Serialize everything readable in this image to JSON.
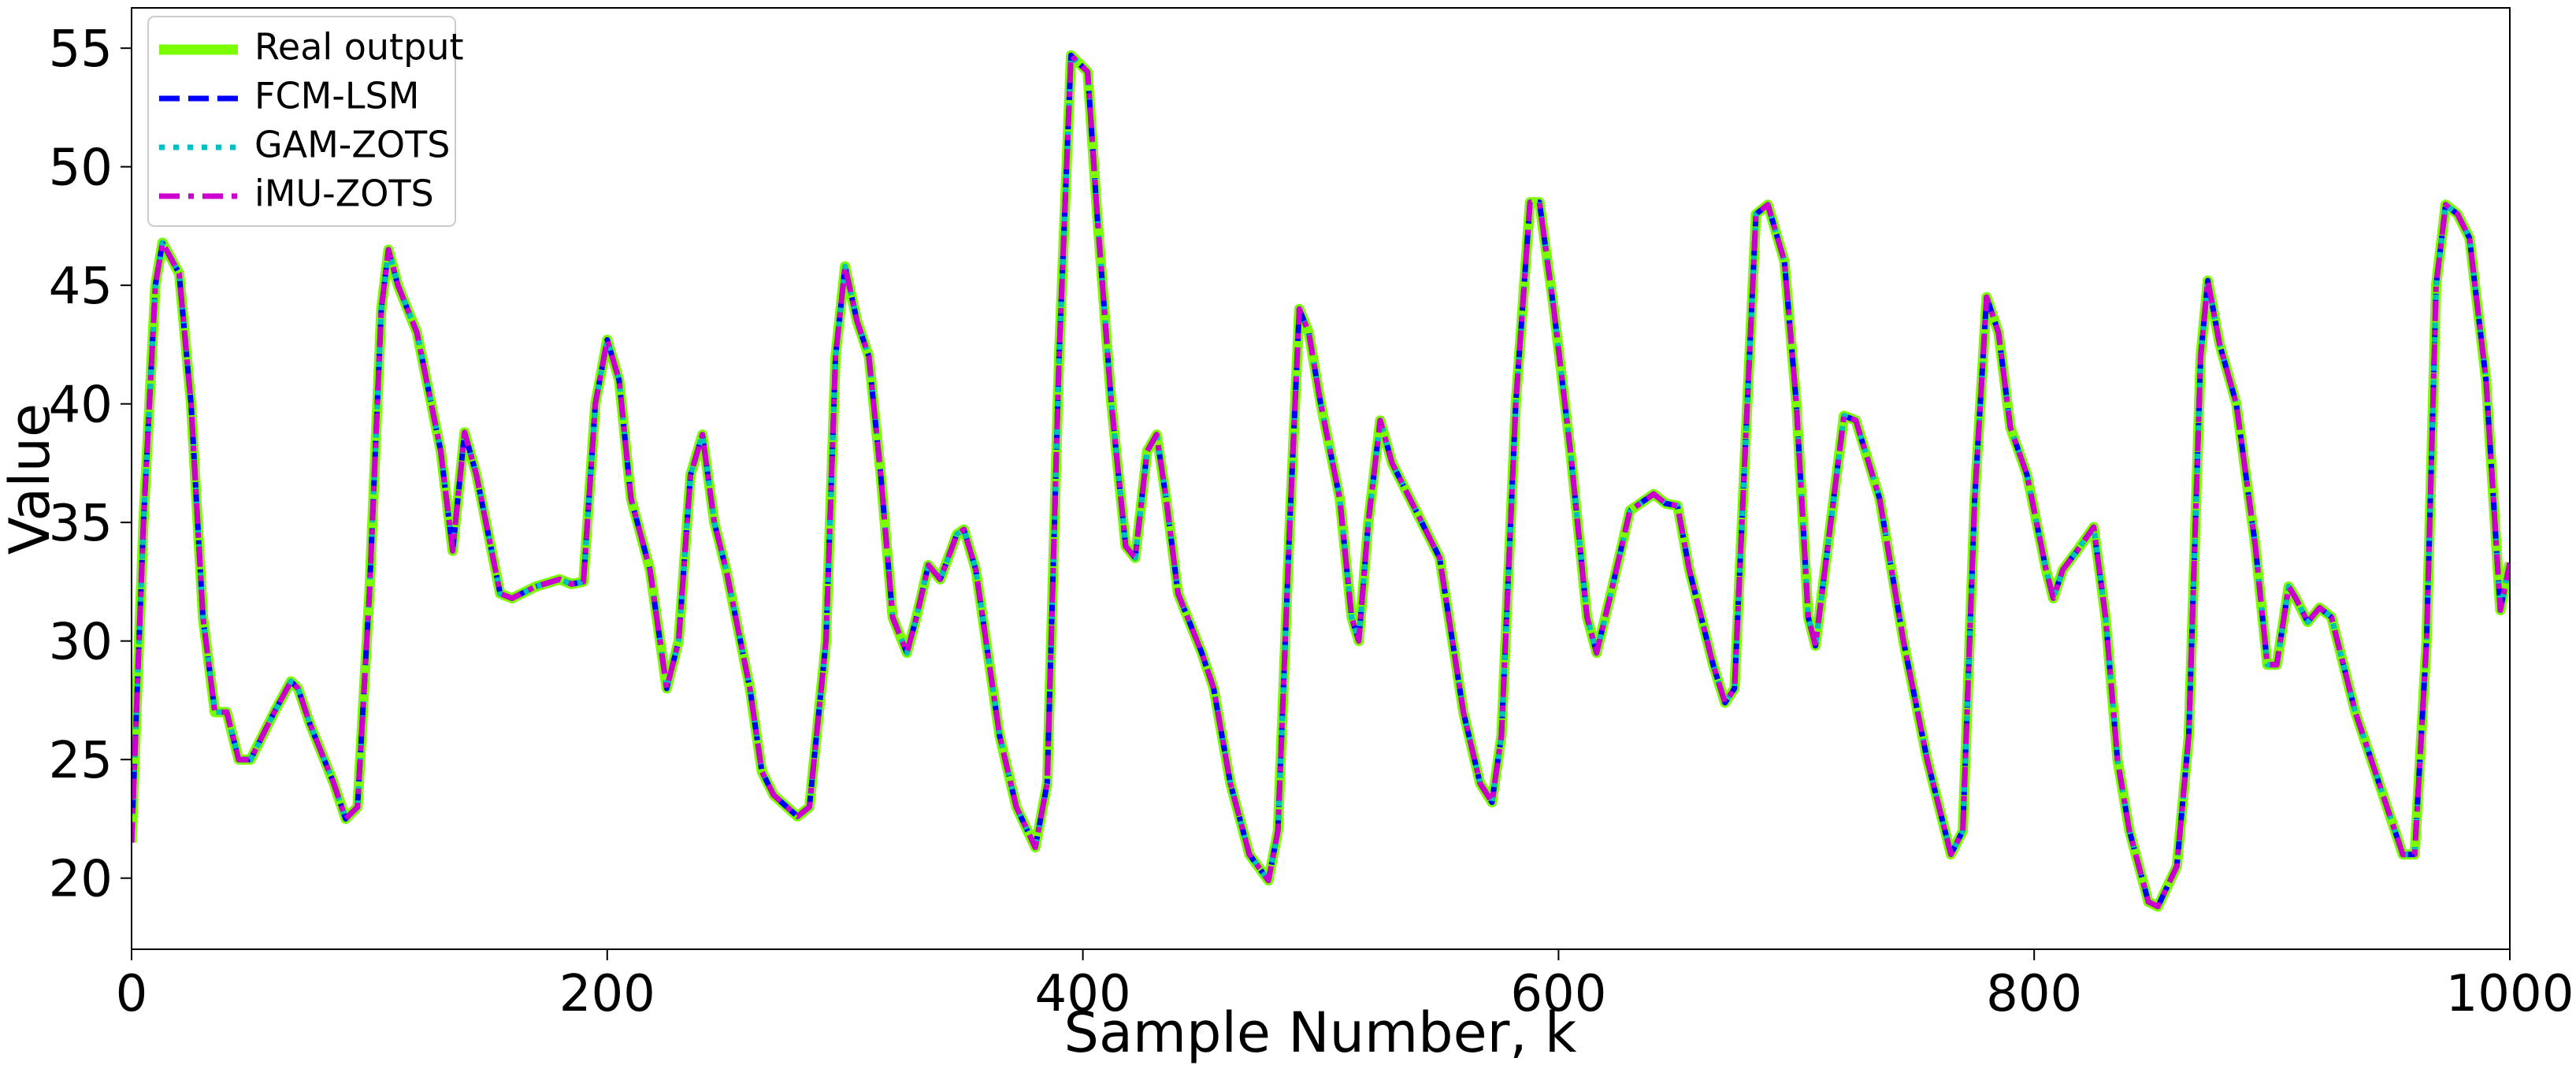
{
  "chart_data": {
    "type": "line",
    "xlabel": "Sample Number, k",
    "ylabel": "Value",
    "xlim": [
      0,
      1000
    ],
    "ylim": [
      17,
      56.7
    ],
    "xticks": [
      0,
      200,
      400,
      600,
      800,
      1000
    ],
    "yticks": [
      20,
      25,
      30,
      35,
      40,
      45,
      50,
      55
    ],
    "grid": false,
    "legend": "upper left",
    "x": [
      0,
      5,
      10,
      13,
      20,
      25,
      30,
      35,
      40,
      45,
      50,
      60,
      67,
      70,
      75,
      85,
      90,
      95,
      100,
      105,
      108,
      112,
      120,
      130,
      135,
      140,
      145,
      155,
      160,
      170,
      180,
      185,
      190,
      195,
      200,
      205,
      210,
      218,
      225,
      230,
      235,
      240,
      245,
      250,
      260,
      265,
      270,
      280,
      285,
      292,
      296,
      300,
      305,
      310,
      315,
      320,
      326,
      330,
      335,
      340,
      347,
      350,
      355,
      365,
      372,
      380,
      385,
      390,
      395,
      402,
      406,
      412,
      418,
      422,
      427,
      431,
      435,
      440,
      450,
      455,
      462,
      470,
      478,
      482,
      487,
      491,
      495,
      500,
      508,
      513,
      516,
      520,
      525,
      530,
      540,
      550,
      560,
      567,
      572,
      576,
      582,
      588,
      592,
      598,
      605,
      612,
      616,
      622,
      630,
      640,
      645,
      650,
      655,
      665,
      670,
      674,
      678,
      683,
      688,
      695,
      700,
      705,
      708,
      712,
      720,
      725,
      735,
      745,
      755,
      765,
      770,
      775,
      780,
      785,
      790,
      797,
      805,
      808,
      812,
      818,
      825,
      830,
      835,
      840,
      848,
      852,
      860,
      865,
      870,
      873,
      878,
      885,
      893,
      898,
      902,
      907,
      910,
      915,
      920,
      925,
      935,
      945,
      955,
      960,
      965,
      969,
      973,
      978,
      983,
      990,
      996,
      1000
    ],
    "series": [
      {
        "name": "Real output",
        "color": "#7cfc00",
        "dash": "solid",
        "values": [
          21.5,
          35,
          45,
          46.8,
          45.5,
          40,
          31,
          27,
          27,
          25,
          25,
          27,
          28.3,
          28,
          26.5,
          24,
          22.5,
          23,
          32,
          44,
          46.5,
          45,
          43,
          38,
          33.8,
          38.8,
          37,
          32,
          31.8,
          32.3,
          32.6,
          32.4,
          32.5,
          40,
          42.7,
          41,
          36,
          33,
          28,
          30,
          37,
          38.7,
          35,
          33,
          28,
          24.5,
          23.5,
          22.6,
          23,
          30,
          42,
          45.8,
          43.5,
          42,
          37,
          31,
          29.5,
          31,
          33.2,
          32.6,
          34.5,
          34.7,
          33,
          26,
          23,
          21.3,
          24,
          42,
          54.7,
          54,
          48,
          40,
          34,
          33.5,
          38,
          38.7,
          36,
          32,
          29.5,
          28,
          24,
          21,
          19.9,
          22,
          35,
          44,
          43,
          40,
          36,
          31,
          30,
          35,
          39.3,
          37.5,
          35.5,
          33.5,
          27,
          24,
          23.2,
          26,
          40,
          48.5,
          48.5,
          44,
          38,
          31,
          29.5,
          32,
          35.5,
          36.2,
          35.8,
          35.7,
          33,
          29,
          27.4,
          28,
          37,
          48,
          48.4,
          46,
          40,
          31,
          29.8,
          33,
          39.5,
          39.3,
          36,
          30,
          25,
          21,
          22,
          36,
          44.5,
          43,
          39,
          37,
          33,
          31.8,
          33,
          33.8,
          34.8,
          31,
          25,
          22,
          19,
          18.8,
          20.5,
          26,
          42,
          45.2,
          42.5,
          40,
          34,
          29,
          29,
          32.3,
          31.8,
          30.8,
          31.4,
          31,
          27,
          24,
          21,
          21,
          30,
          45,
          48.4,
          48,
          47,
          41,
          31.3,
          33.3
        ]
      },
      {
        "name": "FCM-LSM",
        "color": "#0000ff",
        "dash": "dashed",
        "values": [
          21.5,
          35,
          45,
          46.8,
          45.5,
          40,
          31,
          27,
          27,
          25,
          25,
          27,
          28.3,
          28,
          26.5,
          24,
          22.5,
          23,
          32,
          44,
          46.5,
          45,
          43,
          38,
          33.8,
          38.8,
          37,
          32,
          31.8,
          32.3,
          32.6,
          32.4,
          32.5,
          40,
          42.7,
          41,
          36,
          33,
          28,
          30,
          37,
          38.7,
          35,
          33,
          28,
          24.5,
          23.5,
          22.6,
          23,
          30,
          42,
          45.8,
          43.5,
          42,
          37,
          31,
          29.5,
          31,
          33.2,
          32.6,
          34.5,
          34.7,
          33,
          26,
          23,
          21.3,
          24,
          42,
          54.7,
          54,
          48,
          40,
          34,
          33.5,
          38,
          38.7,
          36,
          32,
          29.5,
          28,
          24,
          21,
          19.9,
          22,
          35,
          44,
          43,
          40,
          36,
          31,
          30,
          35,
          39.3,
          37.5,
          35.5,
          33.5,
          27,
          24,
          23.2,
          26,
          40,
          48.5,
          48.5,
          44,
          38,
          31,
          29.5,
          32,
          35.5,
          36.2,
          35.8,
          35.7,
          33,
          29,
          27.4,
          28,
          37,
          48,
          48.4,
          46,
          40,
          31,
          29.8,
          33,
          39.5,
          39.3,
          36,
          30,
          25,
          21,
          22,
          36,
          44.5,
          43,
          39,
          37,
          33,
          31.8,
          33,
          33.8,
          34.8,
          31,
          25,
          22,
          19,
          18.8,
          20.5,
          26,
          42,
          45.2,
          42.5,
          40,
          34,
          29,
          29,
          32.3,
          31.8,
          30.8,
          31.4,
          31,
          27,
          24,
          21,
          21,
          30,
          45,
          48.4,
          48,
          47,
          41,
          31.3,
          33.3
        ]
      },
      {
        "name": "GAM-ZOTS",
        "color": "#00bfbf",
        "dash": "dotted",
        "values": [
          21.5,
          35,
          45,
          46.8,
          45.5,
          40,
          31,
          27,
          27,
          25,
          25,
          27,
          28.3,
          28,
          26.5,
          24,
          22.5,
          23,
          32,
          44,
          46.5,
          45,
          43,
          38,
          33.8,
          38.8,
          37,
          32,
          31.8,
          32.3,
          32.6,
          32.4,
          32.5,
          40,
          42.7,
          41,
          36,
          33,
          28,
          30,
          37,
          38.7,
          35,
          33,
          28,
          24.5,
          23.5,
          22.6,
          23,
          30,
          42,
          45.8,
          43.5,
          42,
          37,
          31,
          29.5,
          31,
          33.2,
          32.6,
          34.5,
          34.7,
          33,
          26,
          23,
          21.3,
          24,
          42,
          54.7,
          54,
          48,
          40,
          34,
          33.5,
          38,
          38.7,
          36,
          32,
          29.5,
          28,
          24,
          21,
          19.9,
          22,
          35,
          44,
          43,
          40,
          36,
          31,
          30,
          35,
          39.3,
          37.5,
          35.5,
          33.5,
          27,
          24,
          23.2,
          26,
          40,
          48.5,
          48.5,
          44,
          38,
          31,
          29.5,
          32,
          35.5,
          36.2,
          35.8,
          35.7,
          33,
          29,
          27.4,
          28,
          37,
          48,
          48.4,
          46,
          40,
          31,
          29.8,
          33,
          39.5,
          39.3,
          36,
          30,
          25,
          21,
          22,
          36,
          44.5,
          43,
          39,
          37,
          33,
          31.8,
          33,
          33.8,
          34.8,
          31,
          25,
          22,
          19,
          18.8,
          20.5,
          26,
          42,
          45.2,
          42.5,
          40,
          34,
          29,
          29,
          32.3,
          31.8,
          30.8,
          31.4,
          31,
          27,
          24,
          21,
          21,
          30,
          45,
          48.4,
          48,
          47,
          41,
          31.3,
          33.3
        ]
      },
      {
        "name": "iMU-ZOTS",
        "color": "#cc00cc",
        "dash": "dashdot",
        "values": [
          21.5,
          35,
          45,
          46.8,
          45.5,
          40,
          31,
          27,
          27,
          25,
          25,
          27,
          28.3,
          28,
          26.5,
          24,
          22.5,
          23,
          32,
          44,
          46.5,
          45,
          43,
          38,
          33.8,
          38.8,
          37,
          32,
          31.8,
          32.3,
          32.6,
          32.4,
          32.5,
          40,
          42.7,
          41,
          36,
          33,
          28,
          30,
          37,
          38.7,
          35,
          33,
          28,
          24.5,
          23.5,
          22.6,
          23,
          30,
          42,
          45.8,
          43.5,
          42,
          37,
          31,
          29.5,
          31,
          33.2,
          32.6,
          34.5,
          34.7,
          33,
          26,
          23,
          21.3,
          24,
          42,
          54.7,
          54,
          48,
          40,
          34,
          33.5,
          38,
          38.7,
          36,
          32,
          29.5,
          28,
          24,
          21,
          19.9,
          22,
          35,
          44,
          43,
          40,
          36,
          31,
          30,
          35,
          39.3,
          37.5,
          35.5,
          33.5,
          27,
          24,
          23.2,
          26,
          40,
          48.5,
          48.5,
          44,
          38,
          31,
          29.5,
          32,
          35.5,
          36.2,
          35.8,
          35.7,
          33,
          29,
          27.4,
          28,
          37,
          48,
          48.4,
          46,
          40,
          31,
          29.8,
          33,
          39.5,
          39.3,
          36,
          30,
          25,
          21,
          22,
          36,
          44.5,
          43,
          39,
          37,
          33,
          31.8,
          33,
          33.8,
          34.8,
          31,
          25,
          22,
          19,
          18.8,
          20.5,
          26,
          42,
          45.2,
          42.5,
          40,
          34,
          29,
          29,
          32.3,
          31.8,
          30.8,
          31.4,
          31,
          27,
          24,
          21,
          21,
          30,
          45,
          48.4,
          48,
          47,
          41,
          31.3,
          33.3
        ]
      }
    ]
  }
}
